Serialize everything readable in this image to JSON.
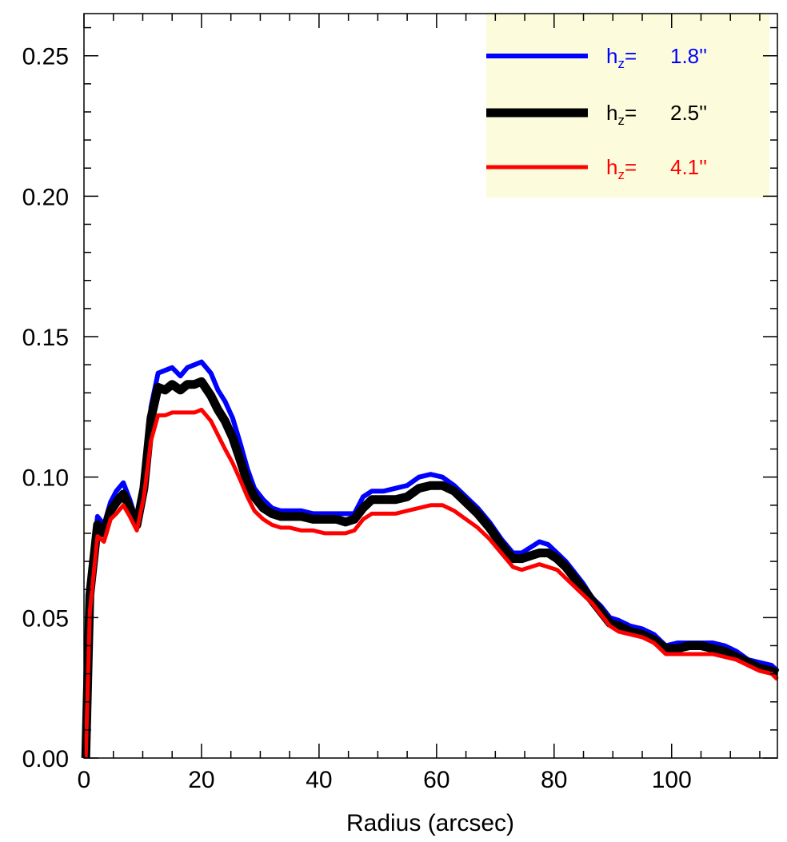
{
  "chart_data": {
    "type": "line",
    "title": "",
    "xlabel": "Radius (arcsec)",
    "ylabel": "",
    "xlim": [
      0,
      118
    ],
    "ylim": [
      0,
      0.265
    ],
    "x_major_ticks": [
      0,
      20,
      40,
      60,
      80,
      100
    ],
    "x_tick_labels": [
      "0",
      "20",
      "40",
      "60",
      "80",
      "100"
    ],
    "y_major_ticks": [
      0,
      0.05,
      0.1,
      0.15,
      0.2,
      0.25
    ],
    "y_tick_labels": [
      "0.00",
      "0.05",
      "0.10",
      "0.15",
      "0.20",
      "0.25"
    ],
    "grid": false,
    "legend": {
      "placement": "top-right",
      "background": "#fcfcdc",
      "entries": [
        {
          "prefix": "h",
          "sub": "z",
          "eq": "=",
          "value": "1.8''",
          "color": "#0000ff"
        },
        {
          "prefix": "h",
          "sub": "z",
          "eq": "=",
          "value": "2.5''",
          "color": "#000000"
        },
        {
          "prefix": "h",
          "sub": "z",
          "eq": "=",
          "value": "4.1''",
          "color": "#ff0000"
        }
      ]
    },
    "x": [
      0.3,
      1.0,
      2.3,
      3.4,
      4.5,
      5.5,
      6.7,
      7.8,
      9.0,
      10.2,
      11.4,
      12.6,
      13.8,
      15.0,
      16.4,
      17.6,
      18.8,
      20.0,
      21.6,
      22.8,
      24.0,
      25.3,
      26.6,
      27.8,
      29.0,
      30.5,
      32.0,
      33.5,
      35.0,
      37.0,
      39.0,
      41.0,
      43.0,
      44.5,
      46.0,
      47.5,
      49.0,
      51.0,
      53.0,
      55.0,
      57.0,
      59.0,
      61.0,
      63.0,
      65.0,
      67.0,
      69.0,
      71.0,
      73.0,
      74.5,
      76.0,
      77.5,
      79.0,
      80.5,
      82.0,
      83.5,
      85.0,
      86.5,
      88.0,
      89.5,
      91.0,
      93.0,
      95.0,
      97.0,
      99.0,
      101.0,
      103.0,
      105.0,
      107.0,
      109.0,
      111.0,
      113.0,
      115.0,
      117.0,
      118.0
    ],
    "series": [
      {
        "color": "#0000ff",
        "stroke_width": 6,
        "values": [
          0.0,
          0.062,
          0.086,
          0.083,
          0.091,
          0.095,
          0.098,
          0.092,
          0.084,
          0.099,
          0.125,
          0.137,
          0.138,
          0.139,
          0.136,
          0.139,
          0.14,
          0.141,
          0.137,
          0.131,
          0.127,
          0.121,
          0.112,
          0.103,
          0.096,
          0.092,
          0.089,
          0.088,
          0.088,
          0.088,
          0.087,
          0.087,
          0.087,
          0.087,
          0.087,
          0.093,
          0.095,
          0.095,
          0.096,
          0.097,
          0.1,
          0.101,
          0.1,
          0.097,
          0.093,
          0.089,
          0.084,
          0.078,
          0.073,
          0.073,
          0.075,
          0.077,
          0.076,
          0.073,
          0.07,
          0.066,
          0.062,
          0.057,
          0.054,
          0.05,
          0.049,
          0.047,
          0.046,
          0.044,
          0.04,
          0.041,
          0.041,
          0.041,
          0.041,
          0.04,
          0.038,
          0.035,
          0.034,
          0.033,
          0.031
        ]
      },
      {
        "color": "#000000",
        "stroke_width": 11,
        "values": [
          0.0,
          0.058,
          0.083,
          0.08,
          0.088,
          0.091,
          0.094,
          0.089,
          0.083,
          0.096,
          0.121,
          0.132,
          0.131,
          0.133,
          0.131,
          0.133,
          0.133,
          0.134,
          0.129,
          0.124,
          0.12,
          0.114,
          0.106,
          0.098,
          0.093,
          0.089,
          0.087,
          0.086,
          0.086,
          0.086,
          0.085,
          0.085,
          0.085,
          0.084,
          0.085,
          0.089,
          0.092,
          0.092,
          0.092,
          0.093,
          0.096,
          0.097,
          0.097,
          0.095,
          0.091,
          0.087,
          0.082,
          0.076,
          0.071,
          0.071,
          0.072,
          0.073,
          0.073,
          0.071,
          0.068,
          0.064,
          0.06,
          0.056,
          0.052,
          0.048,
          0.047,
          0.045,
          0.044,
          0.042,
          0.039,
          0.039,
          0.04,
          0.04,
          0.039,
          0.038,
          0.036,
          0.034,
          0.032,
          0.031,
          0.03
        ]
      },
      {
        "color": "#ff0000",
        "stroke_width": 5,
        "values": [
          0.0,
          0.052,
          0.079,
          0.077,
          0.085,
          0.087,
          0.09,
          0.086,
          0.081,
          0.093,
          0.113,
          0.122,
          0.122,
          0.123,
          0.123,
          0.123,
          0.123,
          0.124,
          0.12,
          0.115,
          0.11,
          0.105,
          0.099,
          0.093,
          0.088,
          0.085,
          0.083,
          0.082,
          0.082,
          0.081,
          0.081,
          0.08,
          0.08,
          0.08,
          0.081,
          0.085,
          0.087,
          0.087,
          0.087,
          0.088,
          0.089,
          0.09,
          0.09,
          0.088,
          0.085,
          0.082,
          0.078,
          0.073,
          0.068,
          0.067,
          0.068,
          0.069,
          0.068,
          0.067,
          0.064,
          0.061,
          0.058,
          0.055,
          0.051,
          0.047,
          0.045,
          0.044,
          0.043,
          0.041,
          0.037,
          0.037,
          0.037,
          0.037,
          0.037,
          0.036,
          0.035,
          0.033,
          0.031,
          0.03,
          0.028
        ]
      }
    ]
  }
}
